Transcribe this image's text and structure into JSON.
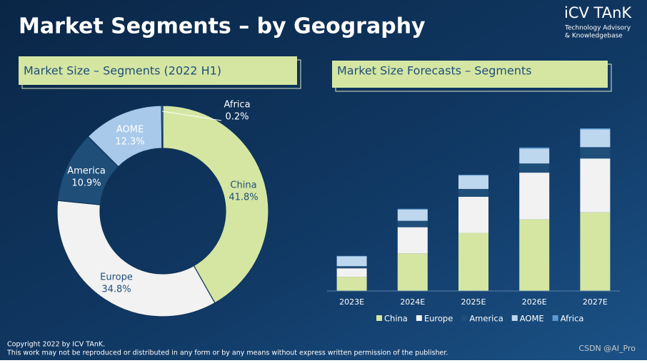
{
  "header": {
    "title": "Market Segments – by Geography",
    "logo": "iCV TAnK",
    "logo_sub": [
      "Technology Advisory",
      "& Knowledgebase"
    ]
  },
  "chart_data": [
    {
      "type": "pie",
      "donut": true,
      "title": "Market Size – Segments (2022 H1)",
      "categories": [
        "China",
        "Europe",
        "America",
        "AOME",
        "Africa"
      ],
      "values": [
        41.8,
        34.8,
        10.9,
        12.3,
        0.2
      ],
      "value_labels": [
        "41.8%",
        "34.8%",
        "10.9%",
        "12.3%",
        "0.2%"
      ],
      "colors": [
        "#d5e6a3",
        "#f2f2f2",
        "#1f4e79",
        "#a9c9ea",
        "#5b9bd5"
      ]
    },
    {
      "type": "bar",
      "stacked": true,
      "title": "Market Size Forecasts – Segments",
      "categories": [
        "2023E",
        "2024E",
        "2025E",
        "2026E",
        "2027E"
      ],
      "legend": "bottom",
      "series": [
        {
          "name": "China",
          "color": "#d5e6a3",
          "values": [
            20,
            53,
            82,
            101,
            111
          ]
        },
        {
          "name": "Europe",
          "color": "#f2f2f2",
          "values": [
            12,
            37,
            51,
            66,
            76
          ]
        },
        {
          "name": "America",
          "color": "#1f4e79",
          "values": [
            3,
            9,
            11,
            13,
            16
          ]
        },
        {
          "name": "AOME",
          "color": "#bdd7ee",
          "values": [
            14,
            16,
            19,
            21,
            25
          ]
        },
        {
          "name": "Africa",
          "color": "#5b9bd5",
          "values": [
            0.5,
            1,
            1,
            1.5,
            1.5
          ]
        }
      ]
    }
  ],
  "footer": {
    "copyright": "Copyright  2022 by ICV TAnK.",
    "notice": "This work may not be reproduced or distributed in any form or by any means without express written permission of the publisher.",
    "watermark": "CSDN @AI_Pro"
  }
}
